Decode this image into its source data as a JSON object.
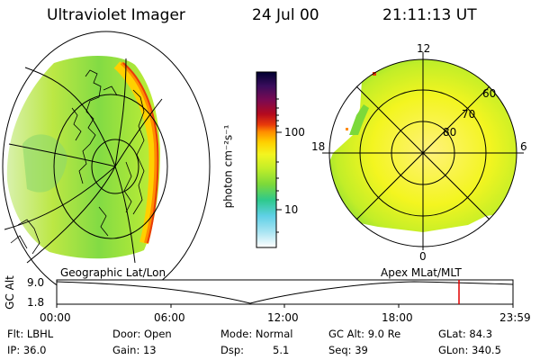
{
  "header": {
    "title": "Ultraviolet Imager",
    "date": "24 Jul 00",
    "time": "21:11:13 UT"
  },
  "colorbar": {
    "unit_label": "photon cm⁻²s⁻¹",
    "ticks": [
      "100",
      "10"
    ],
    "colors": [
      "#000030",
      "#3a0d5c",
      "#7a0a52",
      "#b50a1e",
      "#e83a0a",
      "#ff8c00",
      "#ffd000",
      "#f3f520",
      "#c2ee28",
      "#7cd93a",
      "#2ec98c",
      "#5fd0e6",
      "#a8e4f2",
      "#e8f6fa"
    ]
  },
  "left_map": {
    "caption": "Geographic Lat/Lon"
  },
  "right_map": {
    "caption": "Apex MLat/MLT",
    "mlt_labels": {
      "top": "12",
      "left": "18",
      "right": "6",
      "bottom": "0"
    },
    "lat_labels": [
      "60",
      "70",
      "80"
    ]
  },
  "altitude_plot": {
    "axis_label": "GC Alt",
    "y_ticks": [
      "9.0",
      "1.8"
    ],
    "x_ticks": [
      "00:00",
      "06:00",
      "12:00",
      "18:00",
      "23:59"
    ],
    "marker_color": "#e00000"
  },
  "info": {
    "row1": {
      "flt": "Flt: LBHL",
      "door": "Door: Open",
      "mode": "Mode: Normal",
      "gcalt": "GC Alt: 9.0 Re",
      "glat": "GLat: 84.3"
    },
    "row2": {
      "ip": "IP: 36.0",
      "gain": "Gain: 13",
      "dsp_label": "Dsp:",
      "dsp_value": "5.1",
      "seq": "Seq: 39",
      "glon": "GLon: 340.5"
    }
  }
}
